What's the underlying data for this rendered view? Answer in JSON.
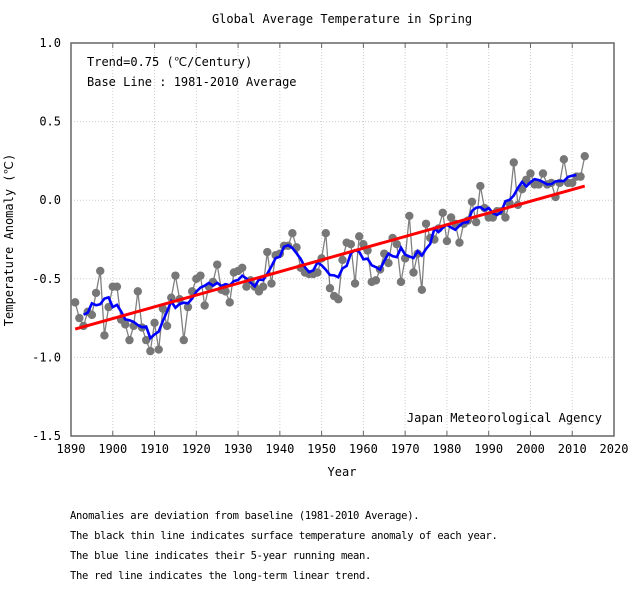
{
  "chart_data": {
    "type": "line",
    "title": "Global Average Temperature in Spring",
    "xlabel": "Year",
    "ylabel": "Temperature Anomaly (℃)",
    "xlim": [
      1890,
      2020
    ],
    "ylim": [
      -1.5,
      1.0
    ],
    "x_ticks": [
      1890,
      1900,
      1910,
      1920,
      1930,
      1940,
      1950,
      1960,
      1970,
      1980,
      1990,
      2000,
      2010,
      2020
    ],
    "y_ticks": [
      1.0,
      0.5,
      0.0,
      -0.5,
      -1.0,
      -1.5
    ],
    "y_tick_labels": [
      "1.0",
      "0.5",
      "0.0",
      "-0.5",
      "-1.0",
      "-1.5"
    ],
    "grid": true,
    "annotations": {
      "trend": "Trend=0.75 (℃/Century)",
      "baseline": "Base Line : 1981-2010 Average",
      "source": "Japan Meteorological Agency"
    },
    "series": [
      {
        "name": "Annual anomaly",
        "color": "#808080",
        "start_year": 1891,
        "values": [
          -0.65,
          -0.75,
          -0.8,
          -0.71,
          -0.73,
          -0.59,
          -0.45,
          -0.86,
          -0.68,
          -0.55,
          -0.55,
          -0.76,
          -0.79,
          -0.89,
          -0.8,
          -0.58,
          -0.81,
          -0.89,
          -0.96,
          -0.78,
          -0.95,
          -0.69,
          -0.8,
          -0.62,
          -0.48,
          -0.63,
          -0.89,
          -0.68,
          -0.58,
          -0.5,
          -0.48,
          -0.67,
          -0.55,
          -0.52,
          -0.41,
          -0.57,
          -0.58,
          -0.65,
          -0.46,
          -0.45,
          -0.43,
          -0.55,
          -0.51,
          -0.55,
          -0.58,
          -0.55,
          -0.33,
          -0.53,
          -0.35,
          -0.34,
          -0.29,
          -0.29,
          -0.21,
          -0.3,
          -0.43,
          -0.46,
          -0.47,
          -0.47,
          -0.46,
          -0.37,
          -0.21,
          -0.56,
          -0.61,
          -0.63,
          -0.38,
          -0.27,
          -0.28,
          -0.53,
          -0.23,
          -0.28,
          -0.32,
          -0.52,
          -0.51,
          -0.44,
          -0.34,
          -0.4,
          -0.24,
          -0.28,
          -0.52,
          -0.37,
          -0.1,
          -0.46,
          -0.34,
          -0.57,
          -0.15,
          -0.24,
          -0.25,
          -0.18,
          -0.08,
          -0.26,
          -0.11,
          -0.15,
          -0.27,
          -0.15,
          -0.13,
          -0.01,
          -0.14,
          0.09,
          -0.05,
          -0.11,
          -0.11,
          -0.07,
          -0.07,
          -0.11,
          -0.02,
          0.24,
          -0.03,
          0.07,
          0.13,
          0.17,
          0.1,
          0.1,
          0.17,
          0.1,
          0.11,
          0.02,
          0.11,
          0.26,
          0.11,
          0.11,
          0.15,
          0.15,
          0.28
        ]
      },
      {
        "name": "5-year running mean",
        "color": "#0000ff",
        "window": 5
      },
      {
        "name": "Long-term linear trend",
        "color": "#ff0000",
        "start": [
          1891,
          -0.82
        ],
        "end": [
          2013,
          0.09
        ]
      }
    ]
  },
  "notes": [
    "Anomalies are deviation from baseline (1981-2010 Average).",
    "The black thin line indicates surface temperature anomaly of each year.",
    "The blue line indicates their 5-year running mean.",
    "The red line indicates the long-term linear trend."
  ]
}
